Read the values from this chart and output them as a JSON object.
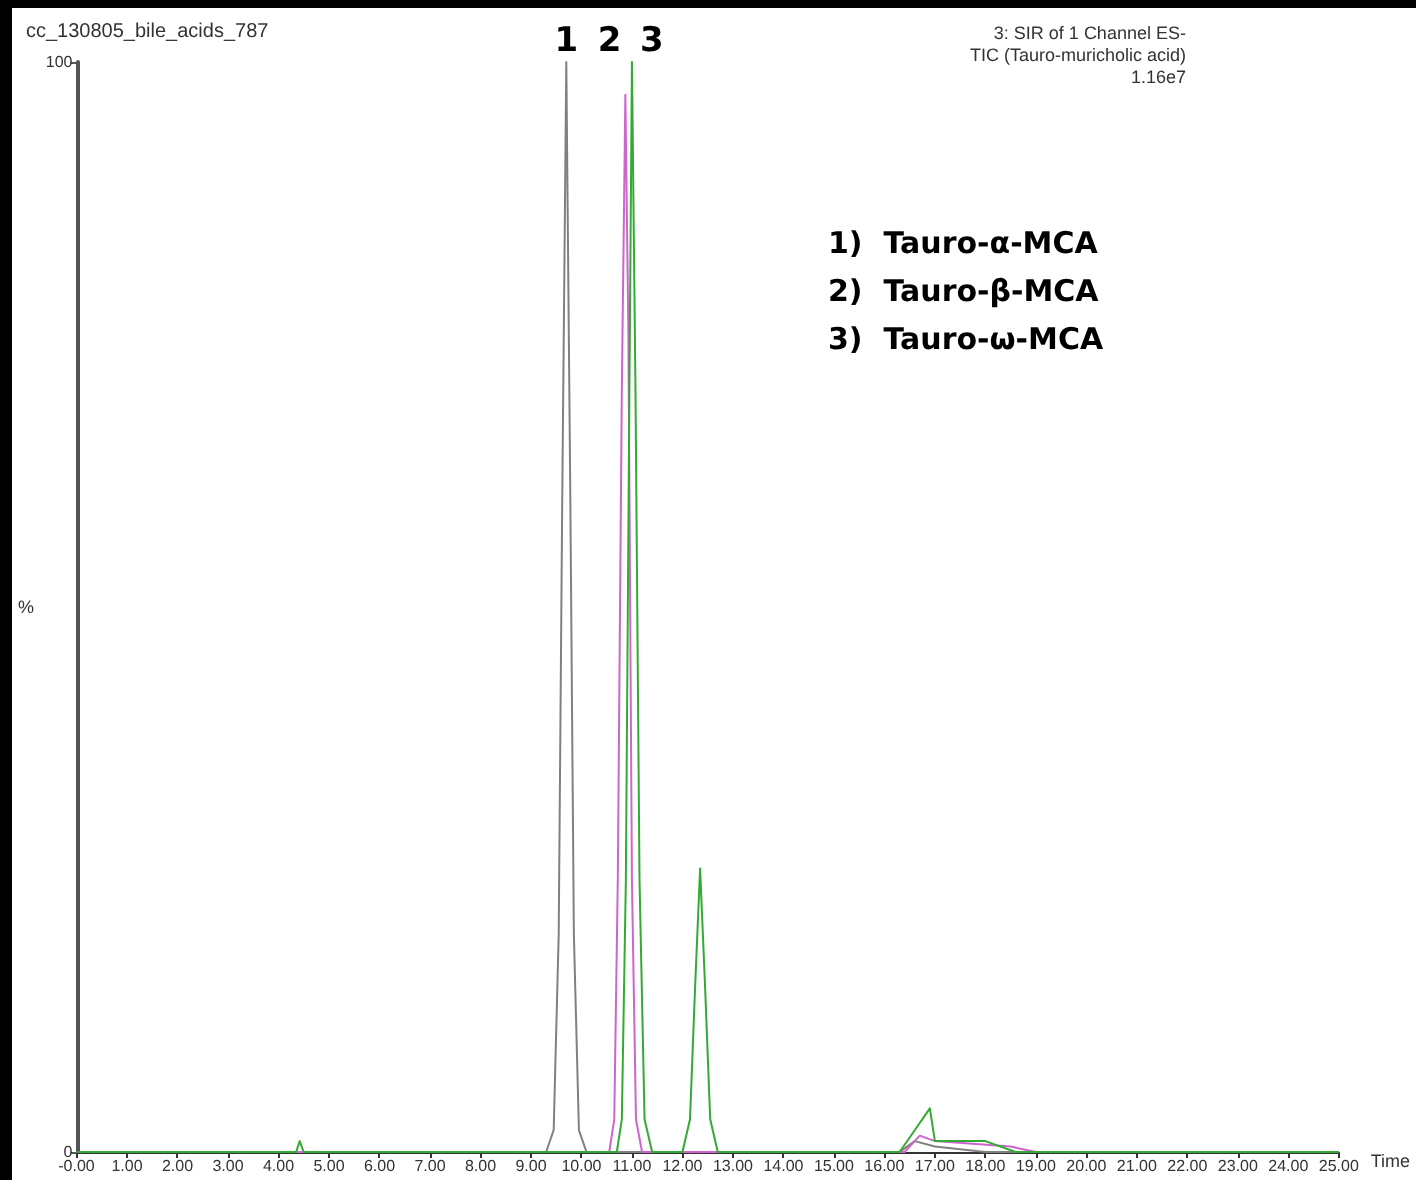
{
  "chart_data": {
    "type": "line",
    "title": "cc_130805_bile_acids_787",
    "subtitle": "3: SIR of 1 Channel ES-\nTIC (Tauro-muricholic acid)\n1.16e7",
    "xlabel": "Time",
    "ylabel": "%",
    "annotations": [
      "1)  Tauro-α-MCA",
      "2)  Tauro-β-MCA",
      "3)  Tauro-ω-MCA",
      {
        "text": "1",
        "x": 9.7,
        "y": 100
      },
      {
        "text": "2",
        "x": 10.87,
        "y": 100
      },
      {
        "text": "3",
        "x": 11.0,
        "y": 100
      }
    ],
    "series": [
      {
        "color": "#808080",
        "x": [
          0,
          9.3,
          9.45,
          9.55,
          9.62,
          9.7,
          9.78,
          9.85,
          9.95,
          10.1,
          16.3,
          16.6,
          17.0,
          18.0,
          25
        ],
        "values": [
          0,
          0,
          2,
          20,
          60,
          100,
          60,
          20,
          2,
          0,
          0,
          1,
          0.5,
          0,
          0
        ]
      },
      {
        "color": "#cc66cc",
        "x": [
          0,
          10.55,
          10.65,
          10.72,
          10.8,
          10.87,
          10.93,
          11.0,
          11.08,
          11.2,
          16.4,
          16.7,
          17.0,
          18.5,
          19.0,
          25
        ],
        "values": [
          0,
          0,
          3,
          25,
          70,
          97,
          75,
          25,
          3,
          0,
          0,
          1.5,
          1,
          0.5,
          0,
          0
        ]
      },
      {
        "color": "#33aa33",
        "x": [
          0,
          4.35,
          4.42,
          4.5,
          10.7,
          10.8,
          10.88,
          10.95,
          11.0,
          11.07,
          11.15,
          11.25,
          11.4,
          12.0,
          12.15,
          12.25,
          12.35,
          12.45,
          12.55,
          12.7,
          16.3,
          16.6,
          16.9,
          17.0,
          18.0,
          18.6,
          25
        ],
        "values": [
          0,
          0,
          1,
          0,
          0,
          3,
          25,
          70,
          100,
          70,
          25,
          3,
          0,
          0,
          3,
          15,
          26,
          15,
          3,
          0,
          0,
          2,
          4,
          1,
          1,
          0,
          0
        ]
      }
    ],
    "xlim": [
      0,
      25
    ],
    "xticks": [
      {
        "value": 0,
        "label": "-0.00"
      },
      {
        "value": 1,
        "label": "1.00"
      },
      {
        "value": 2,
        "label": "2.00"
      },
      {
        "value": 3,
        "label": "3.00"
      },
      {
        "value": 4,
        "label": "4.00"
      },
      {
        "value": 5,
        "label": "5.00"
      },
      {
        "value": 6,
        "label": "6.00"
      },
      {
        "value": 7,
        "label": "7.00"
      },
      {
        "value": 8,
        "label": "8.00"
      },
      {
        "value": 9,
        "label": "9.00"
      },
      {
        "value": 10,
        "label": "10.00"
      },
      {
        "value": 11,
        "label": "11.00"
      },
      {
        "value": 12,
        "label": "12.00"
      },
      {
        "value": 13,
        "label": "13.00"
      },
      {
        "value": 14,
        "label": "14.00"
      },
      {
        "value": 15,
        "label": "15.00"
      },
      {
        "value": 16,
        "label": "16.00"
      },
      {
        "value": 17,
        "label": "17.00"
      },
      {
        "value": 18,
        "label": "18.00"
      },
      {
        "value": 19,
        "label": "19.00"
      },
      {
        "value": 20,
        "label": "20.00"
      },
      {
        "value": 21,
        "label": "21.00"
      },
      {
        "value": 22,
        "label": "22.00"
      },
      {
        "value": 23,
        "label": "23.00"
      },
      {
        "value": 24,
        "label": "24.00"
      },
      {
        "value": 25,
        "label": "25.00"
      }
    ],
    "ylim": [
      0,
      100
    ],
    "yticks": [
      0,
      100
    ],
    "grid": false,
    "marker": "none",
    "line_style": "solid"
  }
}
